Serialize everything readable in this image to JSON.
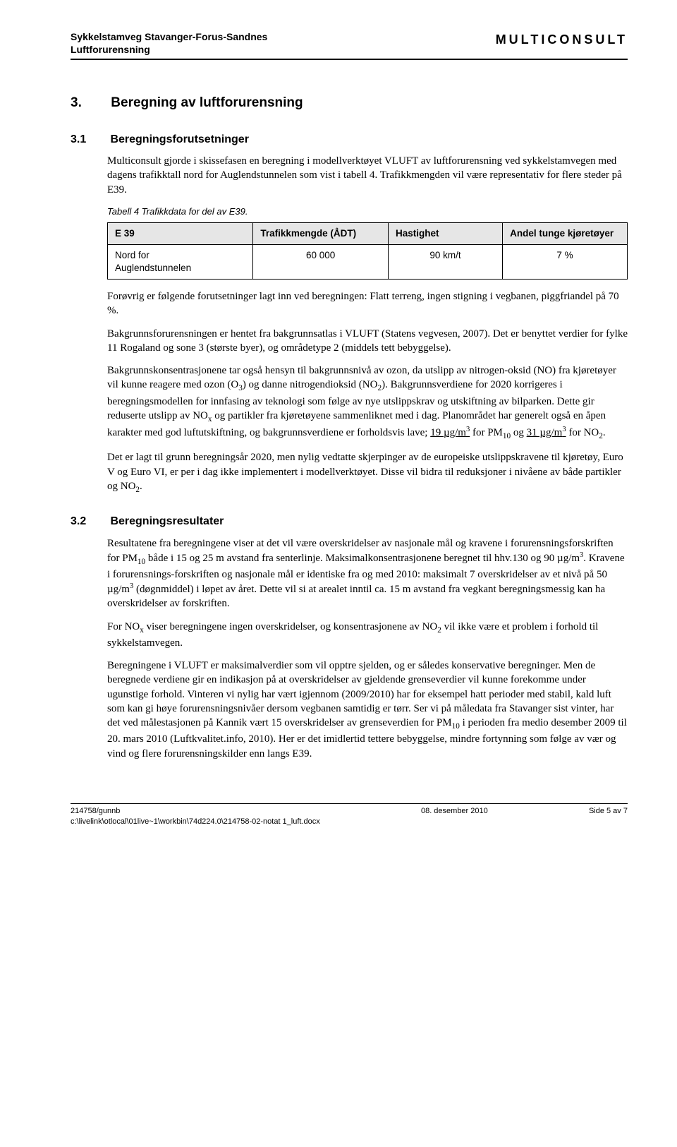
{
  "header": {
    "left_line1": "Sykkelstamveg Stavanger-Forus-Sandnes",
    "left_line2": "Luftforurensning",
    "right": "MULTICONSULT"
  },
  "section3": {
    "number": "3.",
    "title": "Beregning av luftforurensning"
  },
  "section31": {
    "number": "3.1",
    "title": "Beregningsforutsetninger",
    "p1": "Multiconsult gjorde i skissefasen en beregning i modellverktøyet VLUFT av luftforurensning ved sykkelstamvegen med dagens trafikktall nord for Auglendstunnelen som vist i tabell 4. Trafikkmengden vil være representativ for flere steder på E39.",
    "table_caption": "Tabell 4 Trafikkdata for del av E39.",
    "table": {
      "headers": [
        "E 39",
        "Trafikkmengde (ÅDT)",
        "Hastighet",
        "Andel tunge kjøretøyer"
      ],
      "row": {
        "label_l1": "Nord for",
        "label_l2": "Auglendstunnelen",
        "adt": "60 000",
        "speed": "90 km/t",
        "heavy": "7 %"
      },
      "col_widths": [
        "28%",
        "26%",
        "22%",
        "24%"
      ]
    },
    "p2": "Forøvrig er følgende forutsetninger lagt inn ved beregningen: Flatt terreng, ingen stigning i vegbanen, piggfriandel på 70 %.",
    "p3": "Bakgrunnsforurensningen er hentet fra bakgrunnsatlas i VLUFT (Statens vegvesen, 2007). Det er benyttet verdier for fylke 11 Rogaland og sone 3 (største byer), og områdetype 2 (middels tett bebyggelse).",
    "p4_a": "Bakgrunnskonsentrasjonene tar også hensyn til bakgrunnsnivå av ozon, da utslipp av nitrogen-oksid (NO) fra kjøretøyer vil kunne reagere med ozon (O",
    "p4_b": ") og danne nitrogendioksid (NO",
    "p4_c": "). Bakgrunnsverdiene for 2020 korrigeres i beregningsmodellen for innfasing av teknologi som følge av nye utslippskrav og utskiftning av bilparken. Dette gir reduserte utslipp av NO",
    "p4_d": " og partikler fra kjøretøyene sammenliknet med i dag. Planområdet har generelt også en åpen karakter med god luftutskiftning, og bakgrunnsverdiene er forholdsvis lave; ",
    "p4_u1": "19 µg/m",
    "p4_e": " for PM",
    "p4_f": " og ",
    "p4_u2": "31 µg/m",
    "p4_g": " for NO",
    "p4_h": ".",
    "p5": "Det er lagt til grunn beregningsår 2020, men nylig vedtatte skjerpinger av de europeiske utslippskravene til kjøretøy, Euro V og Euro VI, er per i dag ikke implementert i modellverktøyet. Disse vil bidra til reduksjoner i nivåene av både partikler og NO",
    "p5_end": "."
  },
  "section32": {
    "number": "3.2",
    "title": "Beregningsresultater",
    "p1_a": "Resultatene fra beregningene viser at det vil være overskridelser av nasjonale mål og kravene i forurensningsforskriften for PM",
    "p1_b": " både i 15 og 25 m avstand fra senterlinje. Maksimalkonsentrasjonene beregnet til hhv.130 og 90 µg/m",
    "p1_c": ". Kravene i forurensnings-forskriften og nasjonale mål er identiske fra og med 2010: maksimalt 7 overskridelser av et nivå på 50 µg/m",
    "p1_d": " (døgnmiddel) i løpet av året. Dette vil si at arealet inntil ca. 15 m avstand fra vegkant beregningsmessig kan ha overskridelser av forskriften.",
    "p2_a": "For NO",
    "p2_b": " viser beregningene ingen overskridelser, og konsentrasjonene av NO",
    "p2_c": " vil ikke være et problem i forhold til sykkelstamvegen.",
    "p3_a": "Beregningene i VLUFT er maksimalverdier som vil opptre sjelden, og er således konservative beregninger. Men de beregnede verdiene gir en indikasjon på at overskridelser av gjeldende grenseverdier vil kunne forekomme under ugunstige forhold. Vinteren vi nylig har vært igjennom (2009/2010) har for eksempel hatt perioder med stabil, kald luft som kan gi høye forurensningsnivåer dersom vegbanen samtidig er tørr. Ser vi på måledata fra Stavanger sist vinter, har det ved målestasjonen på Kannik vært 15 overskridelser av grenseverdien for PM",
    "p3_b": " i perioden fra medio desember 2009 til 20. mars 2010 (Luftkvalitet.info, 2010). Her er det imidlertid tettere bebyggelse, mindre fortynning som følge av vær og vind og flere forurensningskilder enn langs E39."
  },
  "footer": {
    "left_l1": "214758/gunnb",
    "left_l2": "c:\\livelink\\otlocal\\01live~1\\workbin\\74d224.0\\214758-02-notat 1_luft.docx",
    "center": "08. desember 2010",
    "right": "Side 5 av 7"
  }
}
